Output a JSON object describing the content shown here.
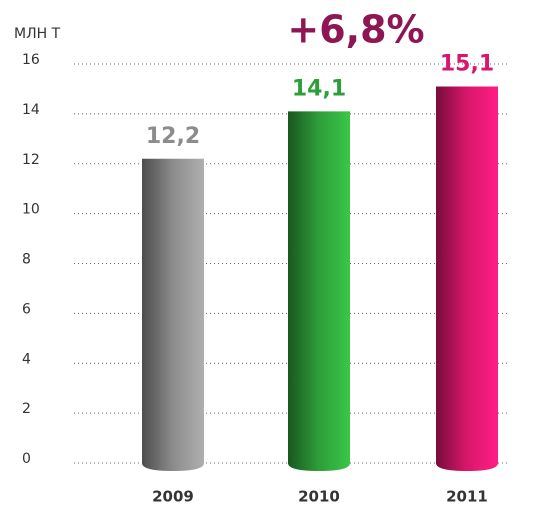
{
  "chart_data": {
    "type": "bar",
    "y_axis_label": "МЛН Т",
    "annotation": "+6,8%",
    "annotation_color": "#8e1653",
    "categories": [
      "2009",
      "2010",
      "2011"
    ],
    "values": [
      12.2,
      14.1,
      15.1
    ],
    "value_labels": [
      "12,2",
      "14,1",
      "15,1"
    ],
    "colors": [
      "#8c8c8c",
      "#2e9e3a",
      "#d8176a"
    ],
    "ylim": [
      0,
      16
    ],
    "yticks": [
      0,
      2,
      4,
      6,
      8,
      10,
      12,
      14,
      16
    ],
    "grid": true
  }
}
